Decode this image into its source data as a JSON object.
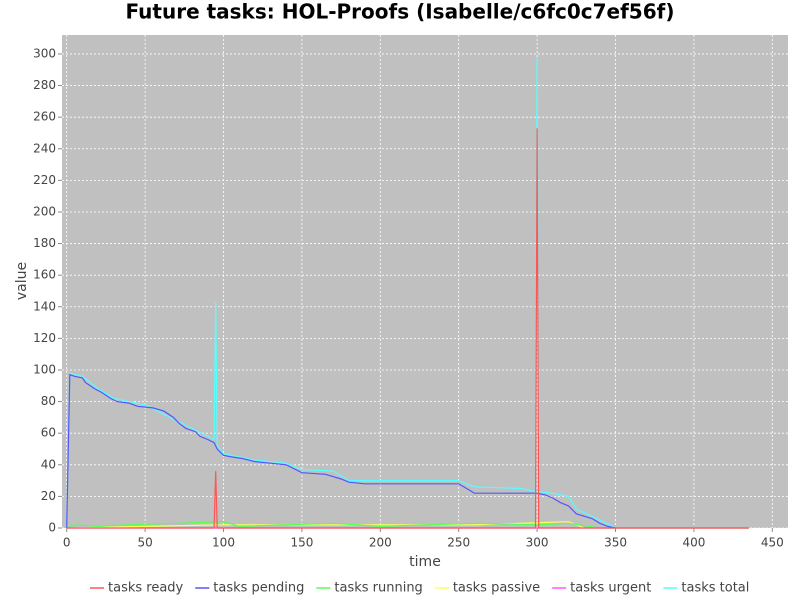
{
  "chart_data": {
    "type": "line",
    "title": "Future tasks: HOL-Proofs (Isabelle/c6fc0c7ef56f)",
    "x_label": "time",
    "y_label": "value",
    "xlim": [
      -3,
      460
    ],
    "ylim": [
      0,
      312
    ],
    "xticks": [
      0,
      50,
      100,
      150,
      200,
      250,
      300,
      350,
      400,
      450
    ],
    "yticks": [
      0,
      20,
      40,
      60,
      80,
      100,
      120,
      140,
      160,
      180,
      200,
      220,
      240,
      260,
      280,
      300
    ],
    "grid": true,
    "legend": "bottom",
    "series": [
      {
        "name": "tasks ready",
        "color": "#ff5555",
        "x": [
          0,
          94,
          95,
          96,
          299,
          300,
          301,
          435
        ],
        "values": [
          0,
          0,
          36,
          0,
          0,
          253,
          0,
          0
        ]
      },
      {
        "name": "tasks pending",
        "color": "#5555ff",
        "x": [
          0,
          2,
          5,
          10,
          12,
          15,
          18,
          22,
          28,
          32,
          40,
          45,
          55,
          62,
          68,
          72,
          76,
          82,
          85,
          90,
          94,
          96,
          100,
          105,
          112,
          120,
          130,
          140,
          150,
          165,
          175,
          180,
          190,
          250,
          255,
          260,
          300,
          305,
          310,
          315,
          320,
          325,
          335,
          340,
          345,
          350
        ],
        "values": [
          0,
          97,
          96,
          95,
          92,
          90,
          88,
          86,
          82,
          80,
          79,
          77,
          76,
          74,
          70,
          66,
          63,
          61,
          58,
          56,
          54,
          50,
          46,
          45,
          44,
          42,
          41,
          40,
          35,
          34,
          31,
          29,
          28,
          28,
          25,
          22,
          22,
          21,
          19,
          16,
          14,
          9,
          6,
          3,
          1,
          0
        ]
      },
      {
        "name": "tasks running",
        "color": "#55ff55",
        "x": [
          0,
          5,
          20,
          40,
          70,
          100,
          110,
          170,
          200,
          260,
          300,
          320,
          340,
          435
        ],
        "values": [
          0,
          2,
          1,
          2,
          3,
          4,
          1,
          3,
          1,
          3,
          2,
          3,
          0,
          0
        ]
      },
      {
        "name": "tasks passive",
        "color": "#ffff55",
        "x": [
          0,
          100,
          120,
          260,
          320,
          330
        ],
        "values": [
          0,
          2,
          2,
          2,
          4,
          0
        ]
      },
      {
        "name": "tasks urgent",
        "color": "#ff55ff",
        "x": [
          0,
          435
        ],
        "values": [
          0,
          0
        ]
      },
      {
        "name": "tasks total",
        "color": "#55ffff",
        "x": [
          0,
          2,
          10,
          20,
          30,
          50,
          70,
          90,
          94,
          95,
          96,
          100,
          120,
          140,
          150,
          170,
          180,
          250,
          260,
          290,
          299,
          300,
          301,
          310,
          320,
          325,
          340,
          350
        ],
        "values": [
          0,
          98,
          96,
          88,
          82,
          78,
          68,
          58,
          56,
          143,
          52,
          47,
          43,
          41,
          37,
          36,
          30,
          30,
          26,
          25,
          23,
          298,
          23,
          22,
          20,
          12,
          5,
          0
        ]
      }
    ]
  }
}
